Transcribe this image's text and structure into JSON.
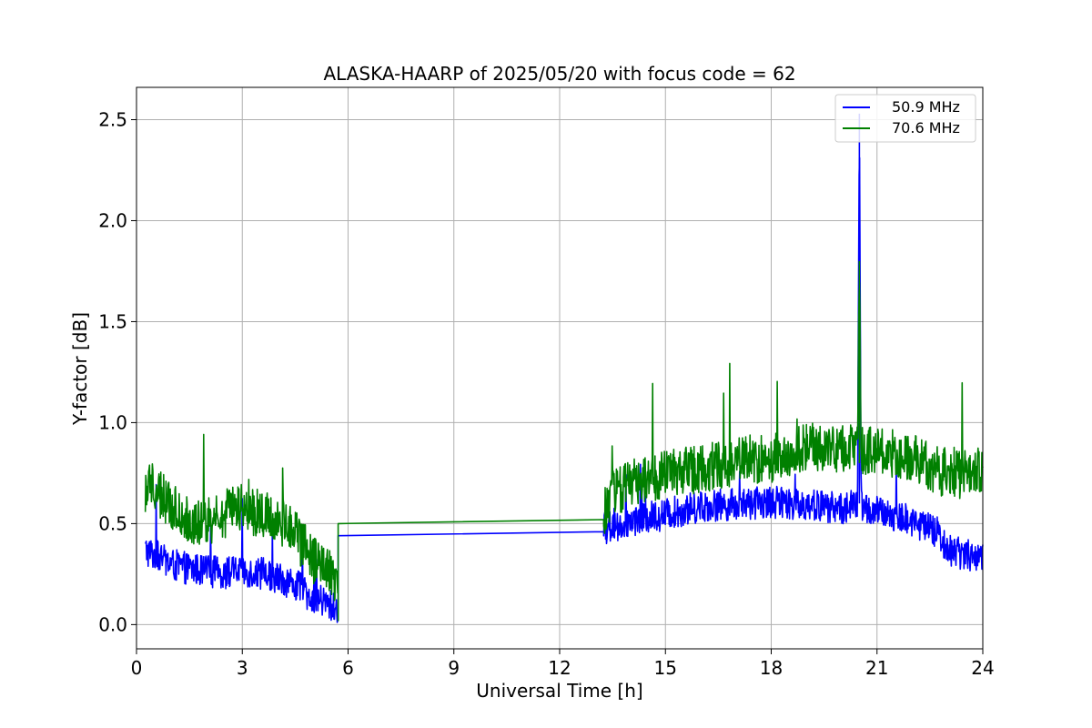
{
  "chart_data": {
    "type": "line",
    "title": "ALASKA-HAARP of 2025/05/20 with focus code = 62",
    "xlabel": "Universal Time [h]",
    "ylabel": "Y-factor [dB]",
    "xlim": [
      0,
      24
    ],
    "ylim": [
      -0.12,
      2.66
    ],
    "xticks": [
      0,
      3,
      6,
      9,
      12,
      15,
      18,
      21,
      24
    ],
    "yticks": [
      0.0,
      0.5,
      1.0,
      1.5,
      2.0,
      2.5
    ],
    "xtick_labels": [
      "0",
      "3",
      "6",
      "9",
      "12",
      "15",
      "18",
      "21",
      "24"
    ],
    "ytick_labels": [
      "0.0",
      "0.5",
      "1.0",
      "1.5",
      "2.0",
      "2.5"
    ],
    "grid": true,
    "legend_position": "top-right",
    "series": [
      {
        "name": "50.9 MHz",
        "color": "#0000ff",
        "x": [
          0.25,
          0.5,
          1.0,
          1.5,
          2.0,
          2.5,
          3.0,
          3.5,
          4.0,
          4.5,
          5.0,
          5.5,
          5.72,
          13.25,
          13.5,
          14.0,
          15.0,
          16.0,
          17.0,
          18.0,
          19.0,
          20.0,
          20.45,
          20.5,
          20.55,
          21.0,
          22.0,
          22.7,
          23.0,
          23.5,
          24.0
        ],
        "y": [
          0.35,
          0.33,
          0.28,
          0.26,
          0.25,
          0.24,
          0.25,
          0.24,
          0.22,
          0.18,
          0.12,
          0.08,
          0.04,
          0.46,
          0.47,
          0.5,
          0.53,
          0.57,
          0.58,
          0.59,
          0.58,
          0.56,
          0.58,
          2.53,
          0.57,
          0.54,
          0.5,
          0.44,
          0.36,
          0.33,
          0.32
        ]
      },
      {
        "name": "70.6 MHz",
        "color": "#008000",
        "x": [
          0.25,
          0.5,
          1.0,
          1.5,
          2.0,
          2.5,
          3.0,
          3.5,
          4.0,
          4.5,
          5.0,
          5.5,
          5.72,
          13.25,
          13.5,
          14.0,
          15.0,
          16.0,
          17.0,
          18.0,
          19.0,
          20.0,
          20.45,
          20.5,
          20.55,
          21.0,
          22.0,
          22.7,
          23.0,
          23.5,
          24.0
        ],
        "y": [
          0.65,
          0.66,
          0.55,
          0.5,
          0.48,
          0.52,
          0.56,
          0.52,
          0.5,
          0.42,
          0.3,
          0.22,
          0.18,
          0.52,
          0.62,
          0.68,
          0.72,
          0.75,
          0.78,
          0.8,
          0.86,
          0.84,
          0.85,
          1.8,
          0.84,
          0.84,
          0.8,
          0.74,
          0.72,
          0.72,
          0.74
        ]
      }
    ],
    "noise_amplitude": [
      0.08,
      0.12
    ]
  }
}
